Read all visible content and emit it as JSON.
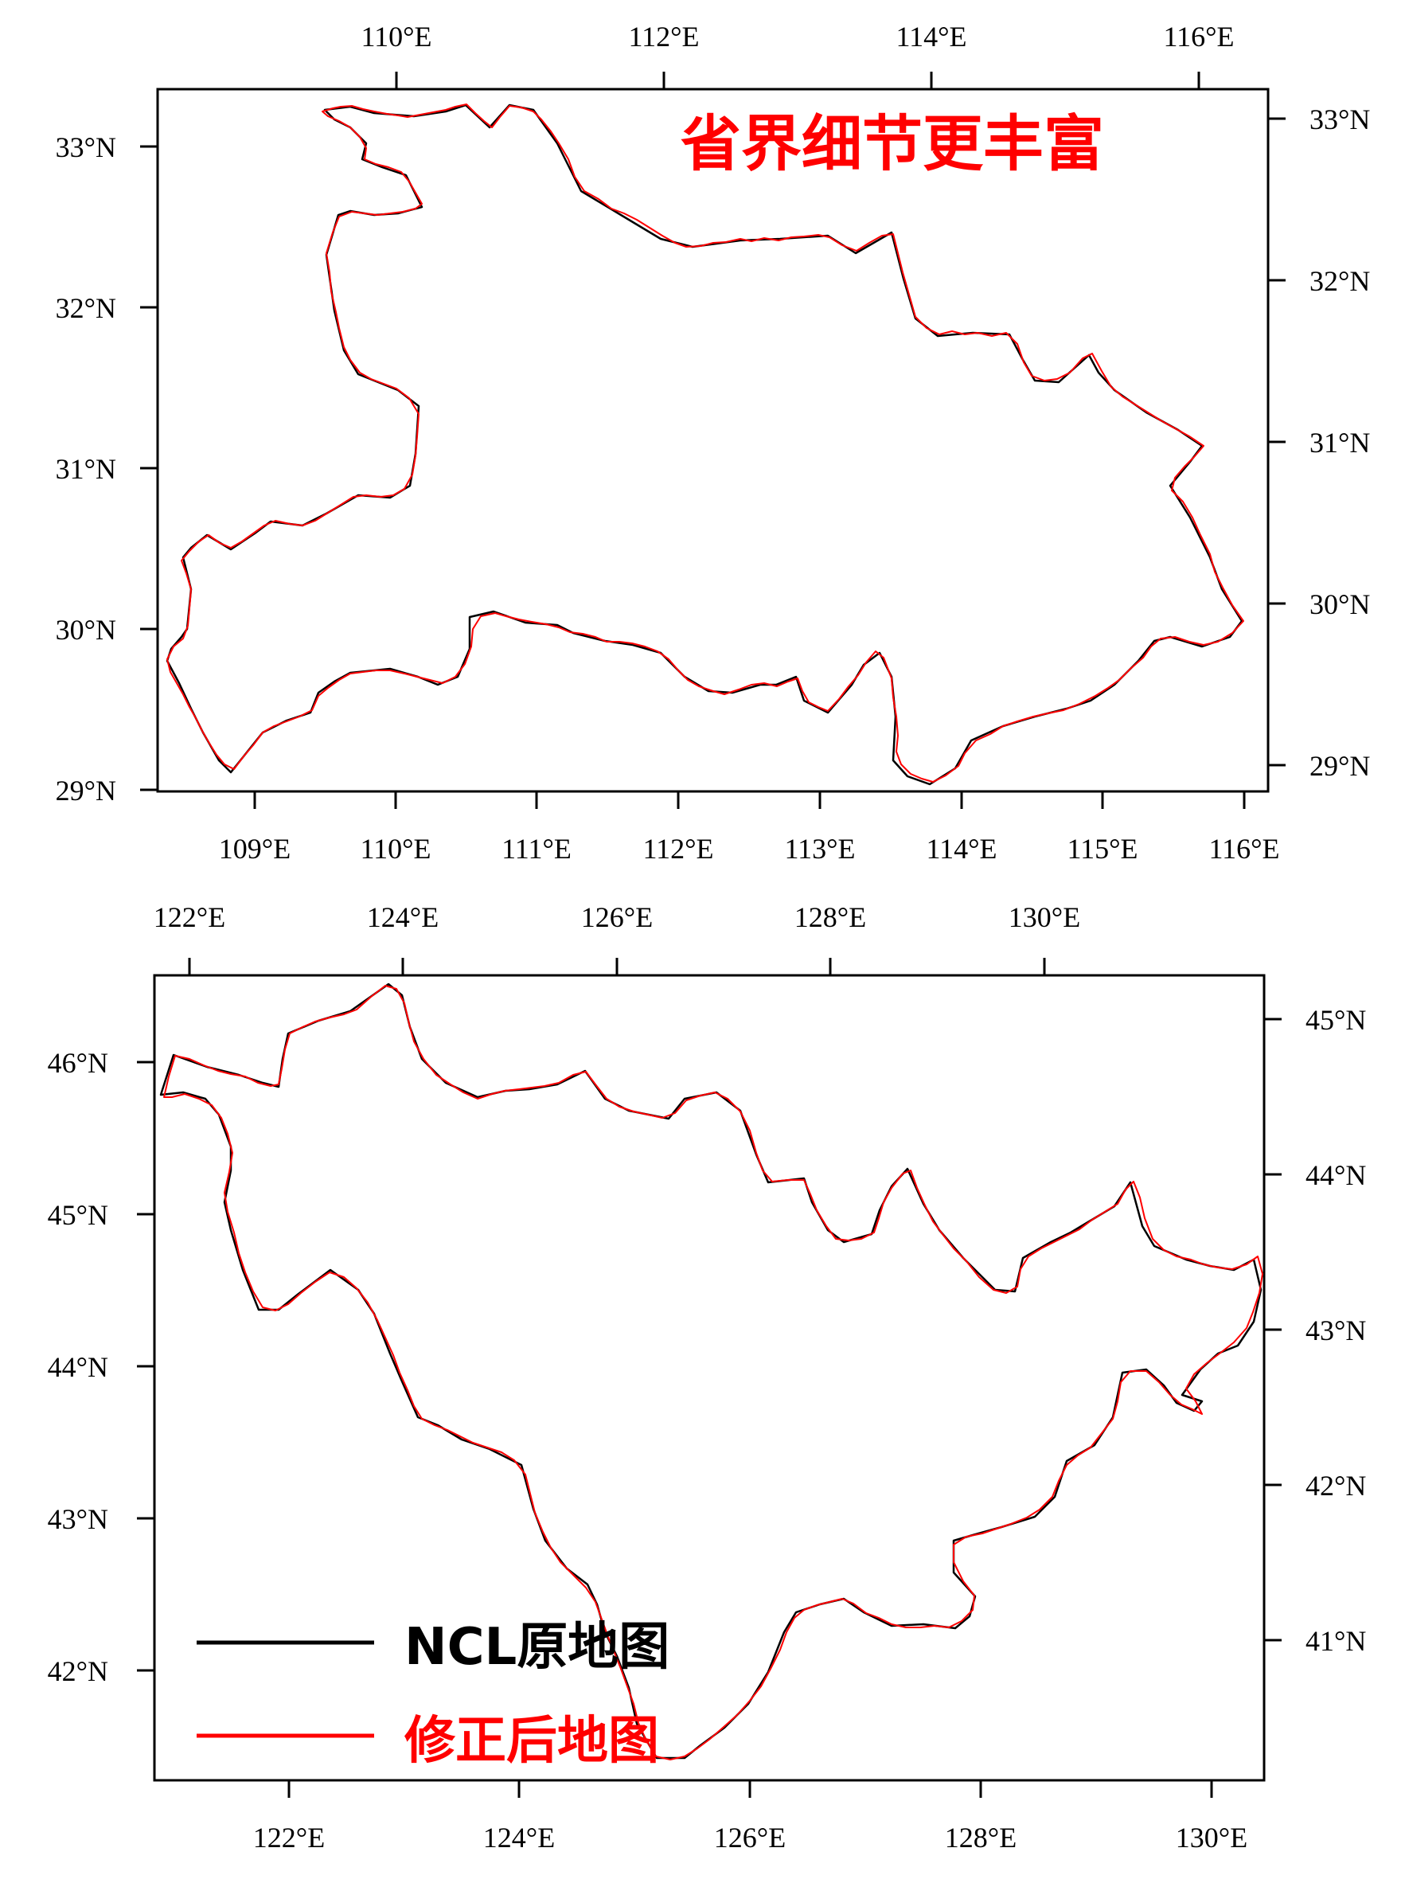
{
  "colors": {
    "original": "#000000",
    "corrected": "#ff0000",
    "annotation": "#ff0000"
  },
  "maps": [
    {
      "name": "hubei",
      "annotation": "省界细节更丰富",
      "top_ticks": [
        "110°E",
        "112°E",
        "114°E",
        "116°E"
      ],
      "bottom_ticks": [
        "109°E",
        "110°E",
        "111°E",
        "112°E",
        "113°E",
        "114°E",
        "115°E",
        "116°E"
      ],
      "left_ticks": [
        "33°N",
        "32°N",
        "31°N",
        "30°N",
        "29°N"
      ],
      "right_ticks": [
        "33°N",
        "32°N",
        "31°N",
        "30°N",
        "29°N"
      ]
    },
    {
      "name": "jilin",
      "top_ticks": [
        "122°E",
        "124°E",
        "126°E",
        "128°E",
        "130°E"
      ],
      "bottom_ticks": [
        "122°E",
        "124°E",
        "126°E",
        "128°E",
        "130°E"
      ],
      "left_ticks": [
        "46°N",
        "45°N",
        "44°N",
        "43°N",
        "42°N"
      ],
      "right_ticks": [
        "45°N",
        "44°N",
        "43°N",
        "42°N",
        "41°N"
      ],
      "legend": [
        {
          "label": "NCL原地图",
          "color": "#000000"
        },
        {
          "label": "修正后地图",
          "color": "#ff0000"
        }
      ]
    }
  ]
}
